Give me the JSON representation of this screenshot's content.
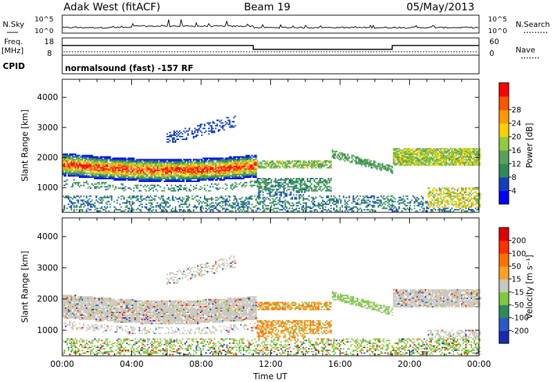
{
  "header": {
    "station": "Adak West (fitACF)",
    "beam": "Beam 19",
    "date": "05/May/2013"
  },
  "noise_panel": {
    "left_label": "N.Sky",
    "right_label": "N.Search",
    "left_ticks": [
      "10^5",
      "10^0"
    ],
    "right_ticks": [
      "10^5",
      "10^0"
    ]
  },
  "freq_panel": {
    "left_label_line1": "Freq.",
    "left_label_line2": "[MHz]",
    "right_label": "Nave",
    "left_ticks": [
      "18",
      "8"
    ],
    "right_ticks": [
      "60",
      "0"
    ],
    "segments": [
      {
        "t0": 0.0,
        "t1": 11.0,
        "freq": 14.0
      },
      {
        "t0": 11.0,
        "t1": 19.0,
        "freq": 11.2
      },
      {
        "t0": 19.0,
        "t1": 24.0,
        "freq": 14.0
      }
    ]
  },
  "cpid_panel": {
    "label": "CPID",
    "text": "normalsound (fast) -157 RF"
  },
  "chart_data": [
    {
      "type": "heatmap",
      "parameter": "power",
      "ylabel": "Slant Range [km]",
      "xlabel": "",
      "xlim": [
        0,
        24
      ],
      "ylim": [
        180,
        4600
      ],
      "yticks": [
        1000,
        2000,
        3000,
        4000
      ],
      "colorbar": {
        "label": "Power [dB]",
        "ticks": [
          "4",
          "8",
          "12",
          "16",
          "20",
          "24",
          "28"
        ],
        "colors": [
          "#0000ff",
          "#1040c0",
          "#2e8b57",
          "#5aa05a",
          "#8fcc3a",
          "#ffd000",
          "#ff9900",
          "#ff5500",
          "#ff0000"
        ]
      }
    },
    {
      "type": "heatmap",
      "parameter": "velocity",
      "ylabel": "Slant Range [km]",
      "xlabel": "Time UT",
      "xlim": [
        0,
        24
      ],
      "ylim": [
        180,
        4600
      ],
      "yticks": [
        1000,
        2000,
        3000,
        4000
      ],
      "xticks": [
        "00:00",
        "04:00",
        "08:00",
        "12:00",
        "16:00",
        "20:00",
        "00:00"
      ],
      "colorbar": {
        "label": "Velocity [m s⁻¹]",
        "ticks": [
          "200",
          "100",
          "50",
          "15",
          "-15",
          "-50",
          "-100",
          "-200"
        ],
        "colors": [
          "#1a2ab0",
          "#2a5ac8",
          "#2e8b57",
          "#80c840",
          "#c8c8c0",
          "#ffa020",
          "#ff7000",
          "#ff3000",
          "#e00000"
        ]
      }
    }
  ]
}
